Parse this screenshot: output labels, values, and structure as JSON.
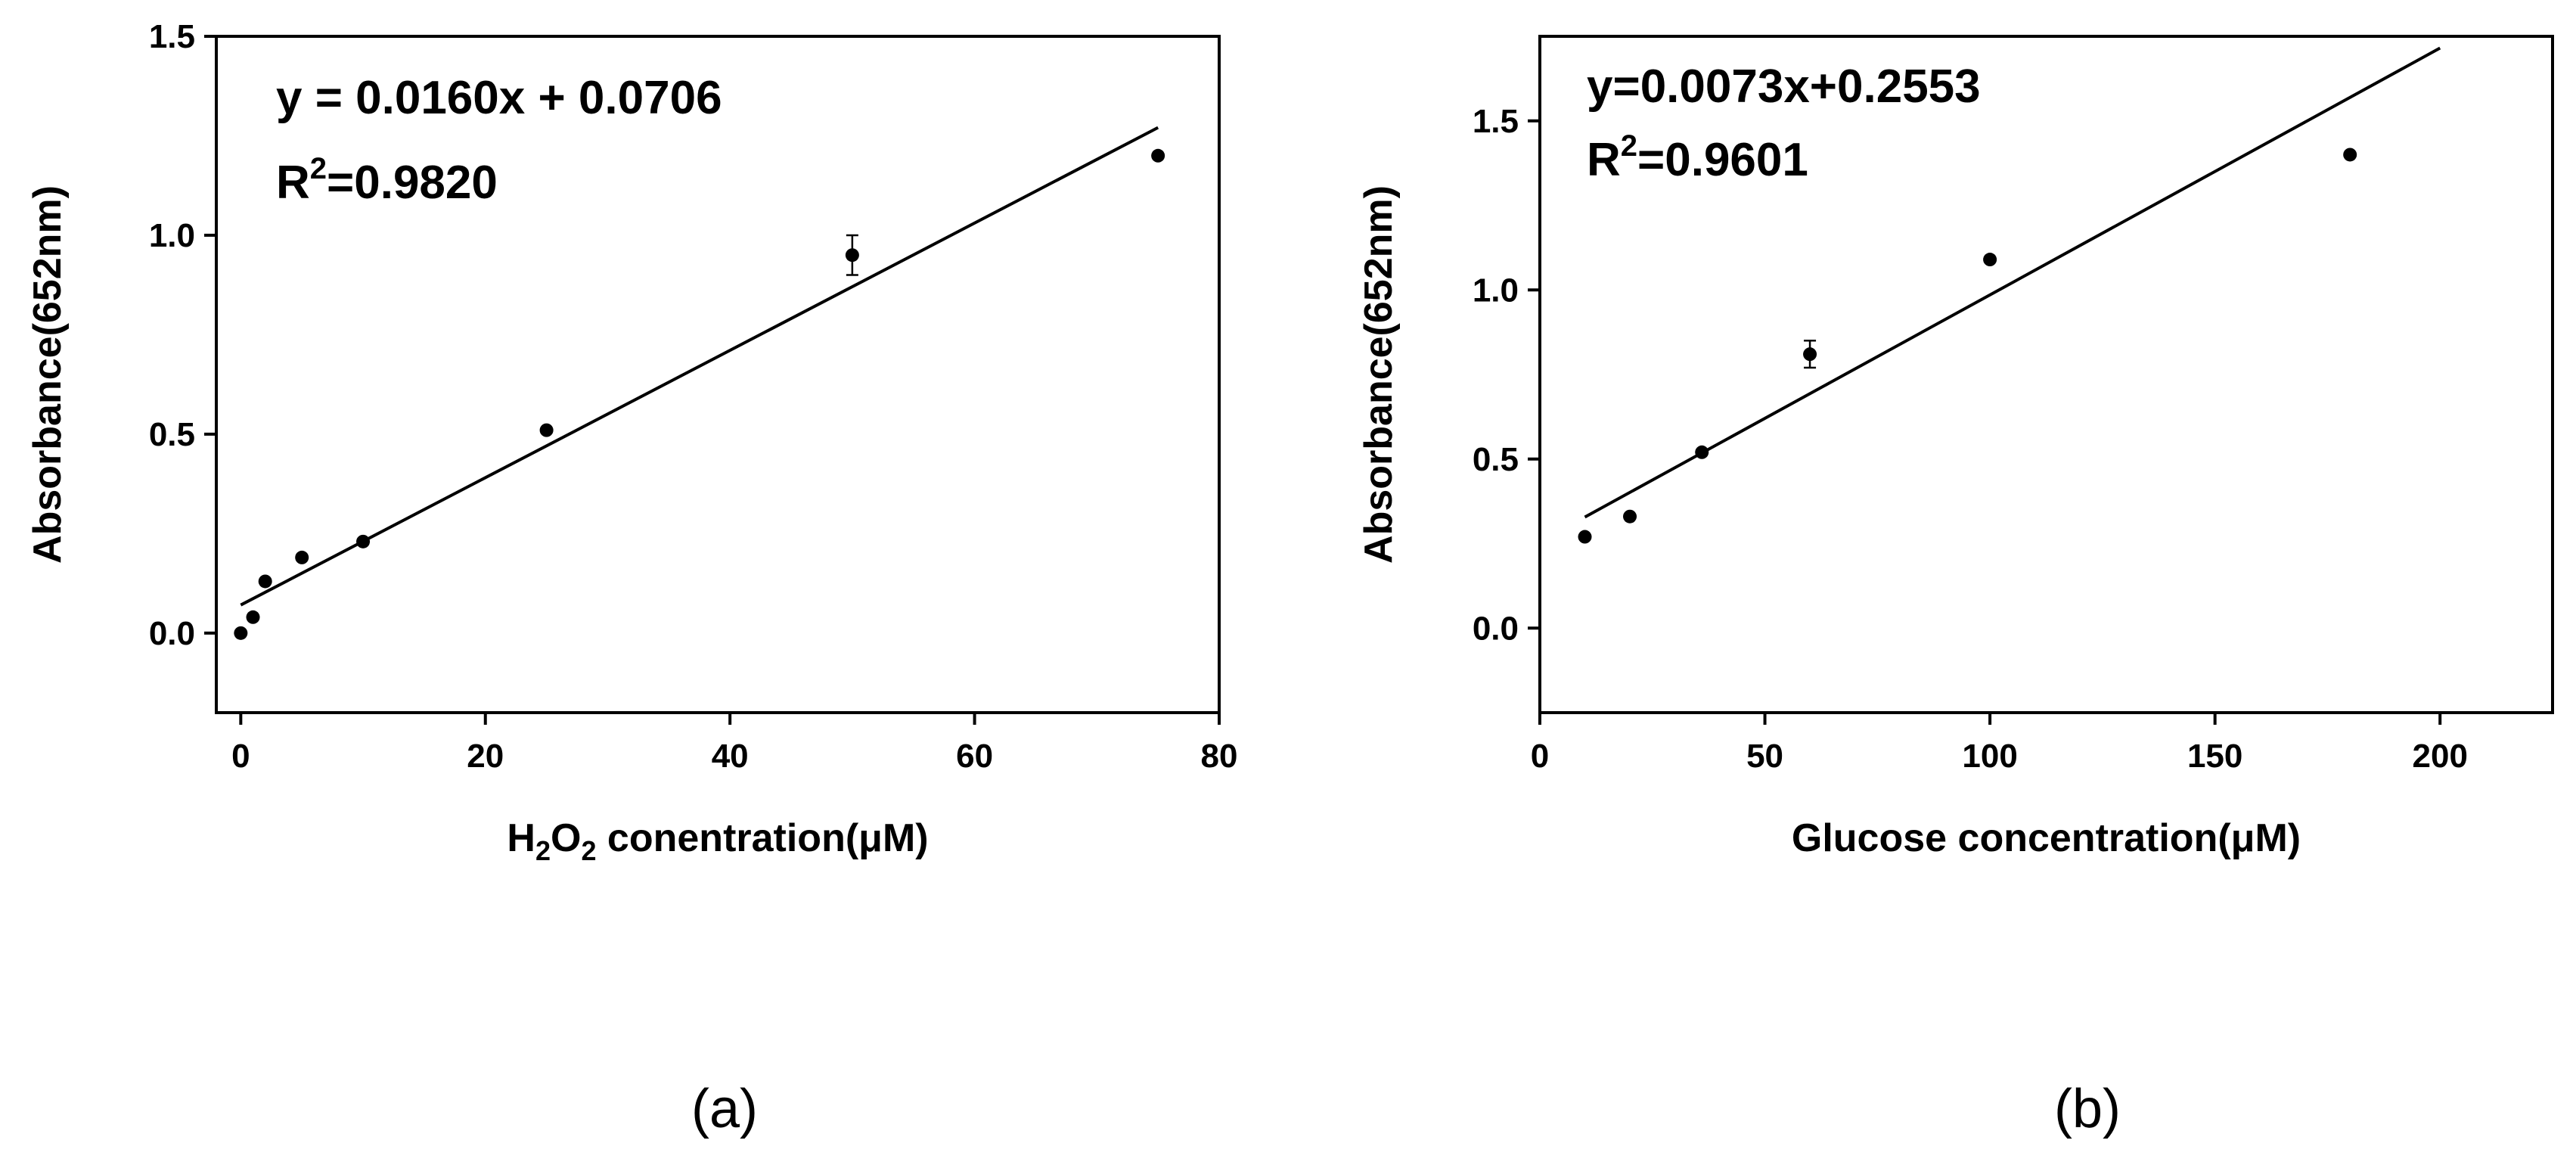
{
  "chart_data": [
    {
      "panel": "(a)",
      "type": "scatter",
      "xlabel_parts": [
        "H",
        "2",
        "O",
        "2",
        " conentration(μM)"
      ],
      "ylabel": "Absorbance(652nm)",
      "xlim": [
        -2,
        80
      ],
      "ylim": [
        -0.2,
        1.5
      ],
      "xticks": [
        0,
        20,
        40,
        60,
        80
      ],
      "xtick_labels": [
        "0",
        "20",
        "40",
        "60",
        "80"
      ],
      "yticks": [
        0.0,
        0.5,
        1.0,
        1.5
      ],
      "ytick_labels": [
        "0.0",
        "0.5",
        "1.0",
        "1.5"
      ],
      "equation": "y = 0.0160x + 0.0706",
      "r2_prefix": "R",
      "r2_sup": "2",
      "r2_value": "=0.9820",
      "fit": {
        "slope": 0.016,
        "intercept": 0.0706,
        "x_range": [
          0,
          75
        ]
      },
      "series": [
        {
          "name": "data",
          "x": [
            0,
            1,
            2,
            5,
            10,
            25,
            50,
            75
          ],
          "y": [
            0.0,
            0.04,
            0.13,
            0.19,
            0.23,
            0.51,
            0.95,
            1.2
          ],
          "err": [
            0,
            0,
            0,
            0,
            0,
            0,
            0.05,
            0
          ]
        }
      ]
    },
    {
      "panel": "(b)",
      "type": "scatter",
      "xlabel_parts": [
        "Glucose concentration(μM)"
      ],
      "ylabel": "Absorbance(652nm)",
      "xlim": [
        0,
        225
      ],
      "ylim": [
        -0.25,
        1.75
      ],
      "xticks": [
        0,
        50,
        100,
        150,
        200
      ],
      "xtick_labels": [
        "0",
        "50",
        "100",
        "150",
        "200"
      ],
      "yticks": [
        0.0,
        0.5,
        1.0,
        1.5
      ],
      "ytick_labels": [
        "0.0",
        "0.5",
        "1.0",
        "1.5"
      ],
      "equation": "y=0.0073x+0.2553",
      "r2_prefix": "R",
      "r2_sup": "2",
      "r2_value": "=0.9601",
      "fit": {
        "slope": 0.0073,
        "intercept": 0.2553,
        "x_range": [
          10,
          200
        ]
      },
      "series": [
        {
          "name": "data",
          "x": [
            10,
            20,
            36,
            60,
            100,
            180
          ],
          "y": [
            0.27,
            0.33,
            0.52,
            0.81,
            1.09,
            1.4
          ],
          "err": [
            0,
            0,
            0,
            0.04,
            0,
            0
          ]
        }
      ]
    }
  ]
}
